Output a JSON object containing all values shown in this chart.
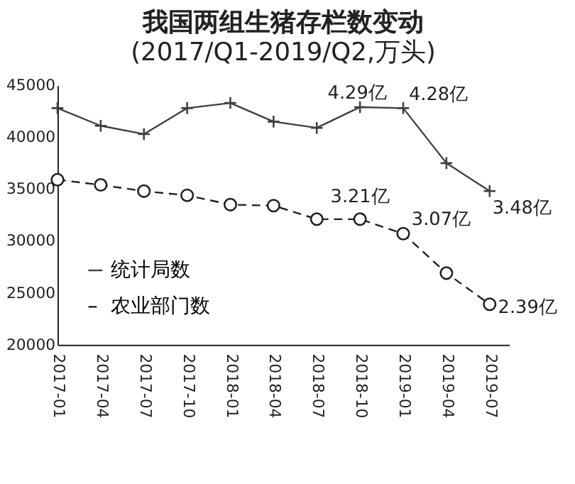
{
  "chart_data": {
    "type": "line",
    "title": "我国两组生猪存栏数变动",
    "subtitle": "(2017/Q1-2019/Q2,万头)",
    "categories": [
      "2017-01",
      "2017-04",
      "2017-07",
      "2017-10",
      "2018-01",
      "2018-04",
      "2018-07",
      "2018-10",
      "2019-01",
      "2019-04",
      "2019-07"
    ],
    "series": [
      {
        "name": "统计局数",
        "color": "#404040",
        "marker": "cross",
        "line_style": "solid",
        "values": [
          42800,
          41100,
          40300,
          42800,
          43300,
          41500,
          40900,
          42900,
          42800,
          37500,
          34800
        ]
      },
      {
        "name": "农业部门数",
        "color": "#202020",
        "marker": "circle",
        "line_style": "dashed",
        "values": [
          35900,
          35400,
          34800,
          34400,
          33500,
          33400,
          32100,
          32100,
          30700,
          26900,
          23900
        ]
      }
    ],
    "ylim": [
      20000,
      45000
    ],
    "yticks": [
      20000,
      25000,
      30000,
      35000,
      40000,
      45000
    ],
    "grid": false,
    "legend": "bottom left",
    "annotations": [
      {
        "text": "4.29亿",
        "x": "2018-10",
        "y": 42900
      },
      {
        "text": "4.28亿",
        "x": "2019-01",
        "y": 42800
      },
      {
        "text": "3.48亿",
        "x": "2019-07",
        "y": 34800
      },
      {
        "text": "3.21亿",
        "x": "2018-10",
        "y": 32100
      },
      {
        "text": "3.07亿",
        "x": "2019-01",
        "y": 30700
      },
      {
        "text": "2.39亿",
        "x": "2019-07",
        "y": 23900
      }
    ]
  }
}
